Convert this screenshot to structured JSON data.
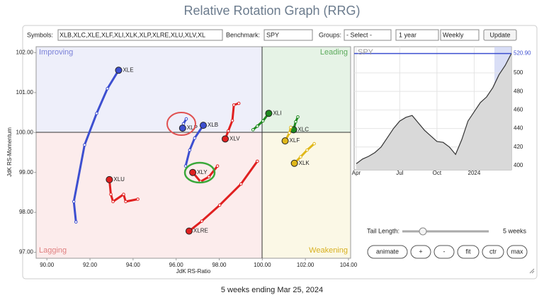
{
  "header": {
    "title": "Relative Rotation Graph (RRG)"
  },
  "controls": {
    "symbols_label": "Symbols:",
    "symbols": "XLB,XLC,XLE,XLF,XLI,XLK,XLP,XLRE,XLU,XLV,XL",
    "benchmark_label": "Benchmark:",
    "benchmark": "SPY",
    "groups_label": "Groups:",
    "groups": "- Select -",
    "period": "1 year",
    "interval": "Weekly",
    "update": "Update"
  },
  "chart_data": [
    {
      "type": "scatter",
      "x_label": "JdK RS-Ratio",
      "y_label": "JdK RS-Momentum",
      "quadrants": [
        "Improving",
        "Leading",
        "Lagging",
        "Weakening"
      ],
      "xlim": [
        89.5,
        104.1
      ],
      "ylim": [
        96.85,
        102.15
      ],
      "xticks": [
        {
          "value": 90,
          "label": "90.00"
        },
        {
          "value": 92,
          "label": "92.00"
        },
        {
          "value": 94,
          "label": "94.00"
        },
        {
          "value": 96,
          "label": "96.00"
        },
        {
          "value": 98,
          "label": "98.00"
        },
        {
          "value": 100,
          "label": "100.00"
        },
        {
          "value": 102,
          "label": "102.00"
        },
        {
          "value": 104,
          "label": "104.00"
        }
      ],
      "yticks": [
        {
          "value": 97,
          "label": "97.00"
        },
        {
          "value": 98,
          "label": "98.00"
        },
        {
          "value": 99,
          "label": "99.00"
        },
        {
          "value": 100,
          "label": "100.00"
        },
        {
          "value": 101,
          "label": "101.00"
        },
        {
          "value": 102,
          "label": "102.00"
        }
      ],
      "series": [
        {
          "name": "XLE",
          "color": "#3d4fd0",
          "x": [
            91.35,
            91.25,
            91.75,
            92.31,
            92.81,
            93.33
          ],
          "values": [
            97.76,
            98.27,
            99.69,
            100.48,
            101.1,
            101.56
          ]
        },
        {
          "name": "XLB",
          "color": "#3d4fd0",
          "x": [
            96.44,
            96.63,
            96.86,
            97.26
          ],
          "values": [
            99.16,
            99.56,
            99.86,
            100.18
          ]
        },
        {
          "name": "XLP",
          "color": "#3d4fd0",
          "x": [
            96.47,
            96.34,
            96.3
          ],
          "values": [
            100.34,
            100.22,
            100.11
          ]
        },
        {
          "name": "XLY",
          "color": "#e02020",
          "x": [
            97.92,
            97.52,
            97.13,
            96.77
          ],
          "values": [
            99.16,
            98.89,
            98.77,
            99.0
          ]
        },
        {
          "name": "XLU",
          "color": "#e02020",
          "x": [
            94.22,
            93.66,
            93.56,
            93.07,
            92.97,
            92.9
          ],
          "values": [
            98.33,
            98.27,
            98.45,
            98.27,
            98.45,
            98.82
          ]
        },
        {
          "name": "XLRE",
          "color": "#e02020",
          "x": [
            99.77,
            99.01,
            98.02,
            97.19,
            96.6
          ],
          "values": [
            99.28,
            98.71,
            98.18,
            97.78,
            97.53
          ]
        },
        {
          "name": "XLV",
          "color": "#e02020",
          "x": [
            98.91,
            98.68,
            98.61,
            98.42,
            98.28
          ],
          "values": [
            100.73,
            100.69,
            100.3,
            100.04,
            99.84
          ]
        },
        {
          "name": "XLI",
          "color": "#1f8a1f",
          "x": [
            99.57,
            99.77,
            100.03,
            100.3
          ],
          "values": [
            100.07,
            100.16,
            100.29,
            100.48
          ]
        },
        {
          "name": "XLC",
          "color": "#1f8a1f",
          "x": [
            101.65,
            101.55,
            101.45
          ],
          "values": [
            100.39,
            100.27,
            100.07
          ]
        },
        {
          "name": "XLF",
          "color": "#e0b81a",
          "x": [
            101.32,
            101.26,
            101.06
          ],
          "values": [
            100.13,
            99.99,
            99.79
          ]
        },
        {
          "name": "XLK",
          "color": "#e0b81a",
          "x": [
            102.41,
            102.08,
            101.78,
            101.49
          ],
          "values": [
            99.72,
            99.56,
            99.39,
            99.23
          ]
        }
      ]
    },
    {
      "type": "area",
      "title": "SPY",
      "color": "#333333",
      "fill": "#d9d9d9",
      "grid": true,
      "categories": [
        "Apr",
        null,
        null,
        null,
        null,
        null,
        null,
        "Jul",
        null,
        null,
        null,
        null,
        null,
        "Oct",
        null,
        null,
        null,
        null,
        null,
        "2024",
        null,
        null,
        null,
        null,
        null,
        null
      ],
      "values": [
        402,
        407,
        410,
        414,
        420,
        430,
        440,
        448,
        452,
        454,
        446,
        438,
        432,
        426,
        425,
        420,
        412,
        428,
        448,
        458,
        468,
        474,
        484,
        498,
        508,
        520.9
      ],
      "last_label": "520.90",
      "ylim": [
        395.4,
        528.2
      ],
      "yticks": [
        400,
        420,
        440,
        460,
        480,
        500
      ]
    }
  ],
  "tail": {
    "label": "Tail Length:",
    "value": "5 weeks"
  },
  "buttons": [
    "animate",
    "+",
    "-",
    "fit",
    "ctr",
    "max"
  ],
  "footer": "5 weeks ending Mar 25, 2024"
}
